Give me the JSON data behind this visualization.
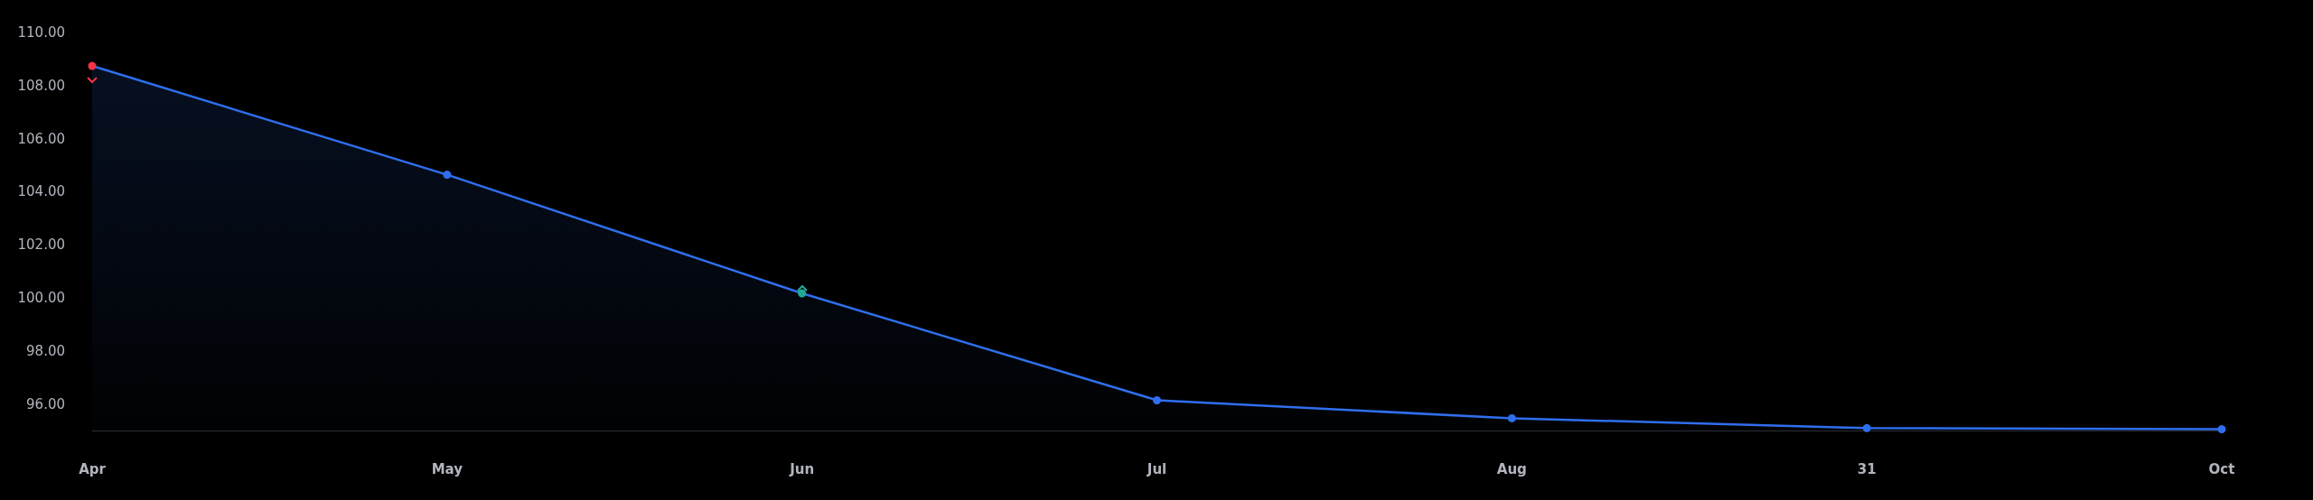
{
  "chart_data": {
    "type": "area",
    "categories": [
      "Apr",
      "May",
      "Jun",
      "Jul",
      "Aug",
      "31",
      "Oct"
    ],
    "series": [
      {
        "color": "#2f6fed",
        "colors": [
          "#f23645",
          "#2f6fed",
          "#22ab94",
          "#2f6fed",
          "#2f6fed",
          "#2f6fed",
          "#2f6fed"
        ],
        "values": [
          108.74,
          104.64,
          100.17,
          96.14,
          95.46,
          95.09,
          95.05
        ]
      }
    ],
    "ylim": [
      95,
      110
    ],
    "yticks": [
      {
        "value": 96,
        "label": "96.00"
      },
      {
        "value": 98,
        "label": "98.00"
      },
      {
        "value": 100,
        "label": "100.00"
      },
      {
        "value": 102,
        "label": "102.00"
      },
      {
        "value": 104,
        "label": "104.00"
      },
      {
        "value": 106,
        "label": "106.00"
      },
      {
        "value": 108,
        "label": "108.00"
      },
      {
        "value": 110,
        "label": "110.00"
      }
    ],
    "grid": false,
    "marker": "circle"
  }
}
